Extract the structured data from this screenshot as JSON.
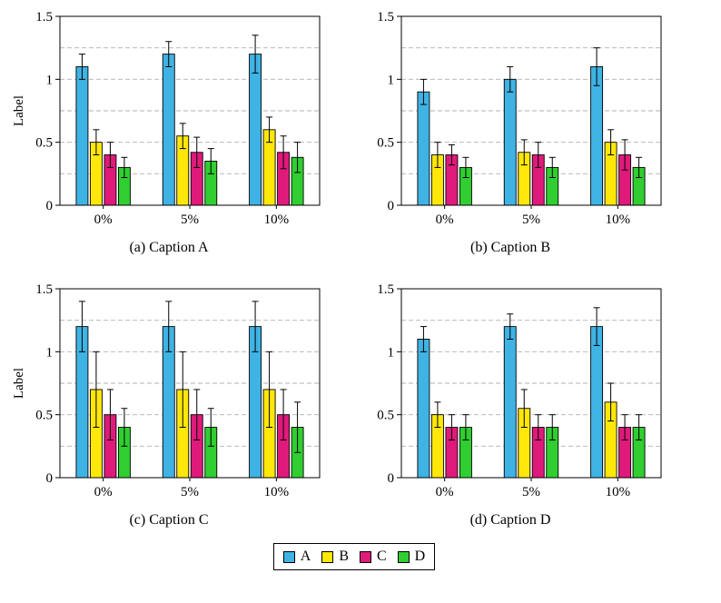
{
  "figure": {
    "ylabel": "Label",
    "ylim": [
      0,
      1.5
    ],
    "yticks": [
      0,
      0.5,
      1,
      1.5
    ],
    "ytick_labels": [
      "0",
      "0.5",
      "1",
      "1.5"
    ],
    "gridlines": [
      0.25,
      0.5,
      0.75,
      1.0,
      1.25
    ],
    "colors": {
      "A": "#3FB3E4",
      "B": "#FFE70A",
      "C": "#E01A7B",
      "D": "#30CE30"
    }
  },
  "legend": {
    "items": [
      {
        "label": "A"
      },
      {
        "label": "B"
      },
      {
        "label": "C"
      },
      {
        "label": "D"
      }
    ]
  },
  "chart_data": [
    {
      "type": "bar",
      "caption": "(a) Caption A",
      "ylabel": "Label",
      "show_ylabel": true,
      "ylim": [
        0,
        1.5
      ],
      "categories": [
        "0%",
        "5%",
        "10%"
      ],
      "series": [
        {
          "name": "A",
          "values": [
            1.1,
            1.2,
            1.2
          ],
          "errors": [
            0.1,
            0.1,
            0.15
          ]
        },
        {
          "name": "B",
          "values": [
            0.5,
            0.55,
            0.6
          ],
          "errors": [
            0.1,
            0.1,
            0.1
          ]
        },
        {
          "name": "C",
          "values": [
            0.4,
            0.42,
            0.42
          ],
          "errors": [
            0.1,
            0.12,
            0.13
          ]
        },
        {
          "name": "D",
          "values": [
            0.3,
            0.35,
            0.38
          ],
          "errors": [
            0.08,
            0.1,
            0.12
          ]
        }
      ]
    },
    {
      "type": "bar",
      "caption": "(b) Caption B",
      "ylabel": "Label",
      "show_ylabel": false,
      "ylim": [
        0,
        1.5
      ],
      "categories": [
        "0%",
        "5%",
        "10%"
      ],
      "series": [
        {
          "name": "A",
          "values": [
            0.9,
            1.0,
            1.1
          ],
          "errors": [
            0.1,
            0.1,
            0.15
          ]
        },
        {
          "name": "B",
          "values": [
            0.4,
            0.42,
            0.5
          ],
          "errors": [
            0.1,
            0.1,
            0.1
          ]
        },
        {
          "name": "C",
          "values": [
            0.4,
            0.4,
            0.4
          ],
          "errors": [
            0.08,
            0.1,
            0.12
          ]
        },
        {
          "name": "D",
          "values": [
            0.3,
            0.3,
            0.3
          ],
          "errors": [
            0.08,
            0.08,
            0.08
          ]
        }
      ]
    },
    {
      "type": "bar",
      "caption": "(c) Caption C",
      "ylabel": "Label",
      "show_ylabel": true,
      "ylim": [
        0,
        1.5
      ],
      "categories": [
        "0%",
        "5%",
        "10%"
      ],
      "series": [
        {
          "name": "A",
          "values": [
            1.2,
            1.2,
            1.2
          ],
          "errors": [
            0.2,
            0.2,
            0.2
          ]
        },
        {
          "name": "B",
          "values": [
            0.7,
            0.7,
            0.7
          ],
          "errors": [
            0.3,
            0.3,
            0.3
          ]
        },
        {
          "name": "C",
          "values": [
            0.5,
            0.5,
            0.5
          ],
          "errors": [
            0.2,
            0.2,
            0.2
          ]
        },
        {
          "name": "D",
          "values": [
            0.4,
            0.4,
            0.4
          ],
          "errors": [
            0.15,
            0.15,
            0.2
          ]
        }
      ]
    },
    {
      "type": "bar",
      "caption": "(d) Caption D",
      "ylabel": "Label",
      "show_ylabel": false,
      "ylim": [
        0,
        1.5
      ],
      "categories": [
        "0%",
        "5%",
        "10%"
      ],
      "series": [
        {
          "name": "A",
          "values": [
            1.1,
            1.2,
            1.2
          ],
          "errors": [
            0.1,
            0.1,
            0.15
          ]
        },
        {
          "name": "B",
          "values": [
            0.5,
            0.55,
            0.6
          ],
          "errors": [
            0.1,
            0.15,
            0.15
          ]
        },
        {
          "name": "C",
          "values": [
            0.4,
            0.4,
            0.4
          ],
          "errors": [
            0.1,
            0.1,
            0.1
          ]
        },
        {
          "name": "D",
          "values": [
            0.4,
            0.4,
            0.4
          ],
          "errors": [
            0.1,
            0.1,
            0.1
          ]
        }
      ]
    }
  ]
}
